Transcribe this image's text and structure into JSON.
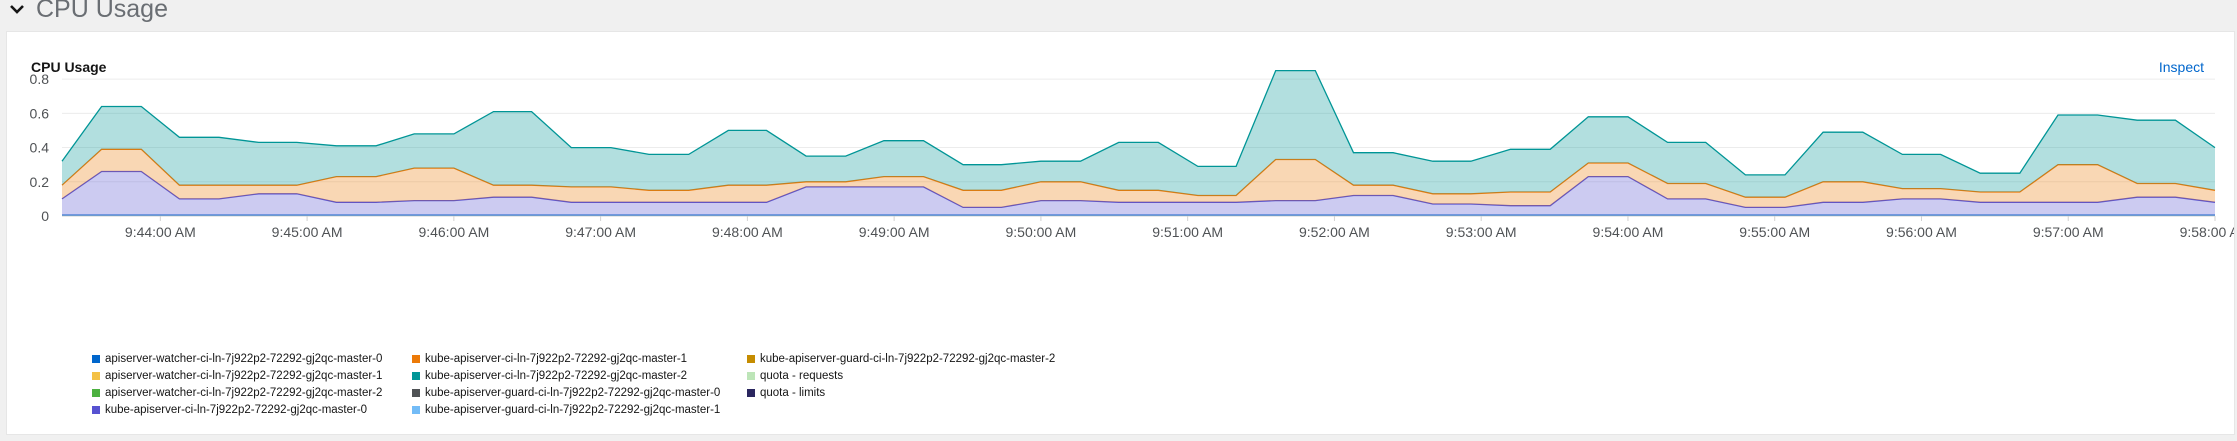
{
  "section": {
    "title": "CPU Usage"
  },
  "card": {
    "title": "CPU Usage",
    "inspect_label": "Inspect"
  },
  "chart_data": {
    "type": "area",
    "stacked": true,
    "title": "CPU Usage",
    "xlabel": "",
    "ylabel": "",
    "ylim": [
      0,
      0.9
    ],
    "y_ticks": [
      "0",
      "0.2",
      "0.4",
      "0.6",
      "0.8"
    ],
    "y_tick_values": [
      0,
      0.2,
      0.4,
      0.6,
      0.8
    ],
    "x_ticks": [
      "9:44:00 AM",
      "9:45:00 AM",
      "9:46:00 AM",
      "9:47:00 AM",
      "9:48:00 AM",
      "9:49:00 AM",
      "9:50:00 AM",
      "9:51:00 AM",
      "9:52:00 AM",
      "9:53:00 AM",
      "9:54:00 AM",
      "9:55:00 AM",
      "9:56:00 AM",
      "9:57:00 AM",
      "9:58:00 AM"
    ],
    "x_tick_minutes": [
      44,
      45,
      46,
      47,
      48,
      49,
      50,
      51,
      52,
      53,
      54,
      55,
      56,
      57,
      58
    ],
    "x_minutes": [
      43.33,
      43.6,
      43.87,
      44.13,
      44.4,
      44.67,
      44.93,
      45.2,
      45.47,
      45.73,
      46.0,
      46.27,
      46.53,
      46.8,
      47.07,
      47.33,
      47.6,
      47.87,
      48.13,
      48.4,
      48.67,
      48.93,
      49.2,
      49.47,
      49.73,
      50.0,
      50.27,
      50.53,
      50.8,
      51.07,
      51.33,
      51.6,
      51.87,
      52.13,
      52.4,
      52.67,
      52.93,
      53.2,
      53.47,
      53.73,
      54.0,
      54.27,
      54.53,
      54.8,
      55.07,
      55.33,
      55.6,
      55.87,
      56.13,
      56.4,
      56.67,
      56.93,
      57.2,
      57.47,
      57.73,
      58.0
    ],
    "grid": true,
    "legend_position": "bottom",
    "series": [
      {
        "name": "apiserver-watcher-ci-ln-7j922p2-72292-gj2qc-master-0",
        "color": "#06c",
        "values": [
          0.005,
          0.005,
          0.005,
          0.005,
          0.005,
          0.005,
          0.005,
          0.005,
          0.005,
          0.005,
          0.005,
          0.005,
          0.005,
          0.005,
          0.005,
          0.005,
          0.005,
          0.005,
          0.005,
          0.005,
          0.005,
          0.005,
          0.005,
          0.005,
          0.005,
          0.005,
          0.005,
          0.005,
          0.005,
          0.005,
          0.005,
          0.005,
          0.005,
          0.005,
          0.005,
          0.005,
          0.005,
          0.005,
          0.005,
          0.005,
          0.005,
          0.005,
          0.005,
          0.005,
          0.005,
          0.005,
          0.005,
          0.005,
          0.005,
          0.005,
          0.005,
          0.005,
          0.005,
          0.005,
          0.005,
          0.005
        ]
      },
      {
        "name": "apiserver-watcher-ci-ln-7j922p2-72292-gj2qc-master-1",
        "color": "#f4c145",
        "values": [
          0,
          0,
          0,
          0,
          0,
          0,
          0,
          0,
          0,
          0,
          0,
          0,
          0,
          0,
          0,
          0,
          0,
          0,
          0,
          0,
          0,
          0,
          0,
          0,
          0,
          0,
          0,
          0,
          0,
          0,
          0,
          0,
          0,
          0,
          0,
          0,
          0,
          0,
          0,
          0,
          0,
          0,
          0,
          0,
          0,
          0,
          0,
          0,
          0,
          0,
          0,
          0,
          0,
          0,
          0,
          0
        ]
      },
      {
        "name": "apiserver-watcher-ci-ln-7j922p2-72292-gj2qc-master-2",
        "color": "#4cb140",
        "values": [
          0,
          0,
          0,
          0,
          0,
          0,
          0,
          0,
          0,
          0,
          0,
          0,
          0,
          0,
          0,
          0,
          0,
          0,
          0,
          0,
          0,
          0,
          0,
          0,
          0,
          0,
          0,
          0,
          0,
          0,
          0,
          0,
          0,
          0,
          0,
          0,
          0,
          0,
          0,
          0,
          0,
          0,
          0,
          0,
          0,
          0,
          0,
          0,
          0,
          0,
          0,
          0,
          0,
          0,
          0,
          0
        ]
      },
      {
        "name": "kube-apiserver-ci-ln-7j922p2-72292-gj2qc-master-0",
        "color": "#5752d1",
        "values": [
          0.095,
          0.255,
          0.255,
          0.095,
          0.095,
          0.125,
          0.125,
          0.075,
          0.075,
          0.085,
          0.085,
          0.105,
          0.105,
          0.075,
          0.075,
          0.075,
          0.075,
          0.075,
          0.075,
          0.165,
          0.165,
          0.165,
          0.165,
          0.045,
          0.045,
          0.085,
          0.085,
          0.075,
          0.075,
          0.075,
          0.075,
          0.085,
          0.085,
          0.115,
          0.115,
          0.065,
          0.065,
          0.055,
          0.055,
          0.225,
          0.225,
          0.095,
          0.095,
          0.045,
          0.045,
          0.075,
          0.075,
          0.095,
          0.095,
          0.075,
          0.075,
          0.075,
          0.075,
          0.105,
          0.105,
          0.075
        ]
      },
      {
        "name": "kube-apiserver-ci-ln-7j922p2-72292-gj2qc-master-1",
        "color": "#ec7a08",
        "values": [
          0.08,
          0.13,
          0.13,
          0.08,
          0.08,
          0.05,
          0.05,
          0.15,
          0.15,
          0.19,
          0.19,
          0.07,
          0.07,
          0.09,
          0.09,
          0.07,
          0.07,
          0.1,
          0.1,
          0.03,
          0.03,
          0.06,
          0.06,
          0.1,
          0.1,
          0.11,
          0.11,
          0.07,
          0.07,
          0.04,
          0.04,
          0.24,
          0.24,
          0.06,
          0.06,
          0.06,
          0.06,
          0.08,
          0.08,
          0.08,
          0.08,
          0.09,
          0.09,
          0.06,
          0.06,
          0.12,
          0.12,
          0.06,
          0.06,
          0.06,
          0.06,
          0.22,
          0.22,
          0.08,
          0.08,
          0.07
        ]
      },
      {
        "name": "kube-apiserver-ci-ln-7j922p2-72292-gj2qc-master-2",
        "color": "#009596",
        "values": [
          0.14,
          0.25,
          0.25,
          0.28,
          0.28,
          0.25,
          0.25,
          0.18,
          0.18,
          0.2,
          0.2,
          0.43,
          0.43,
          0.23,
          0.23,
          0.21,
          0.21,
          0.32,
          0.32,
          0.15,
          0.15,
          0.21,
          0.21,
          0.15,
          0.15,
          0.12,
          0.12,
          0.28,
          0.28,
          0.17,
          0.17,
          0.52,
          0.52,
          0.19,
          0.19,
          0.19,
          0.19,
          0.25,
          0.25,
          0.27,
          0.27,
          0.24,
          0.24,
          0.13,
          0.13,
          0.29,
          0.29,
          0.2,
          0.2,
          0.11,
          0.11,
          0.29,
          0.29,
          0.37,
          0.37,
          0.25
        ]
      },
      {
        "name": "kube-apiserver-guard-ci-ln-7j922p2-72292-gj2qc-master-0",
        "color": "#4f5255",
        "values": [
          0,
          0,
          0,
          0,
          0,
          0,
          0,
          0,
          0,
          0,
          0,
          0,
          0,
          0,
          0,
          0,
          0,
          0,
          0,
          0,
          0,
          0,
          0,
          0,
          0,
          0,
          0,
          0,
          0,
          0,
          0,
          0,
          0,
          0,
          0,
          0,
          0,
          0,
          0,
          0,
          0,
          0,
          0,
          0,
          0,
          0,
          0,
          0,
          0,
          0,
          0,
          0,
          0,
          0,
          0,
          0
        ]
      },
      {
        "name": "kube-apiserver-guard-ci-ln-7j922p2-72292-gj2qc-master-1",
        "color": "#73bcf7",
        "values": [
          0,
          0,
          0,
          0,
          0,
          0,
          0,
          0,
          0,
          0,
          0,
          0,
          0,
          0,
          0,
          0,
          0,
          0,
          0,
          0,
          0,
          0,
          0,
          0,
          0,
          0,
          0,
          0,
          0,
          0,
          0,
          0,
          0,
          0,
          0,
          0,
          0,
          0,
          0,
          0,
          0,
          0,
          0,
          0,
          0,
          0,
          0,
          0,
          0,
          0,
          0,
          0,
          0,
          0,
          0,
          0
        ]
      },
      {
        "name": "kube-apiserver-guard-ci-ln-7j922p2-72292-gj2qc-master-2",
        "color": "#c58c00",
        "values": [
          0,
          0,
          0,
          0,
          0,
          0,
          0,
          0,
          0,
          0,
          0,
          0,
          0,
          0,
          0,
          0,
          0,
          0,
          0,
          0,
          0,
          0,
          0,
          0,
          0,
          0,
          0,
          0,
          0,
          0,
          0,
          0,
          0,
          0,
          0,
          0,
          0,
          0,
          0,
          0,
          0,
          0,
          0,
          0,
          0,
          0,
          0,
          0,
          0,
          0,
          0,
          0,
          0,
          0,
          0,
          0
        ]
      },
      {
        "name": "quota - requests",
        "color": "#bde5b8",
        "values": [
          0,
          0,
          0,
          0,
          0,
          0,
          0,
          0,
          0,
          0,
          0,
          0,
          0,
          0,
          0,
          0,
          0,
          0,
          0,
          0,
          0,
          0,
          0,
          0,
          0,
          0,
          0,
          0,
          0,
          0,
          0,
          0,
          0,
          0,
          0,
          0,
          0,
          0,
          0,
          0,
          0,
          0,
          0,
          0,
          0,
          0,
          0,
          0,
          0,
          0,
          0,
          0,
          0,
          0,
          0,
          0
        ]
      },
      {
        "name": "quota - limits",
        "color": "#2a265f",
        "values": [
          0,
          0,
          0,
          0,
          0,
          0,
          0,
          0,
          0,
          0,
          0,
          0,
          0,
          0,
          0,
          0,
          0,
          0,
          0,
          0,
          0,
          0,
          0,
          0,
          0,
          0,
          0,
          0,
          0,
          0,
          0,
          0,
          0,
          0,
          0,
          0,
          0,
          0,
          0,
          0,
          0,
          0,
          0,
          0,
          0,
          0,
          0,
          0,
          0,
          0,
          0,
          0,
          0,
          0,
          0,
          0
        ]
      }
    ],
    "legend_order": [
      0,
      4,
      8,
      1,
      5,
      9,
      2,
      6,
      10,
      3,
      7
    ]
  }
}
